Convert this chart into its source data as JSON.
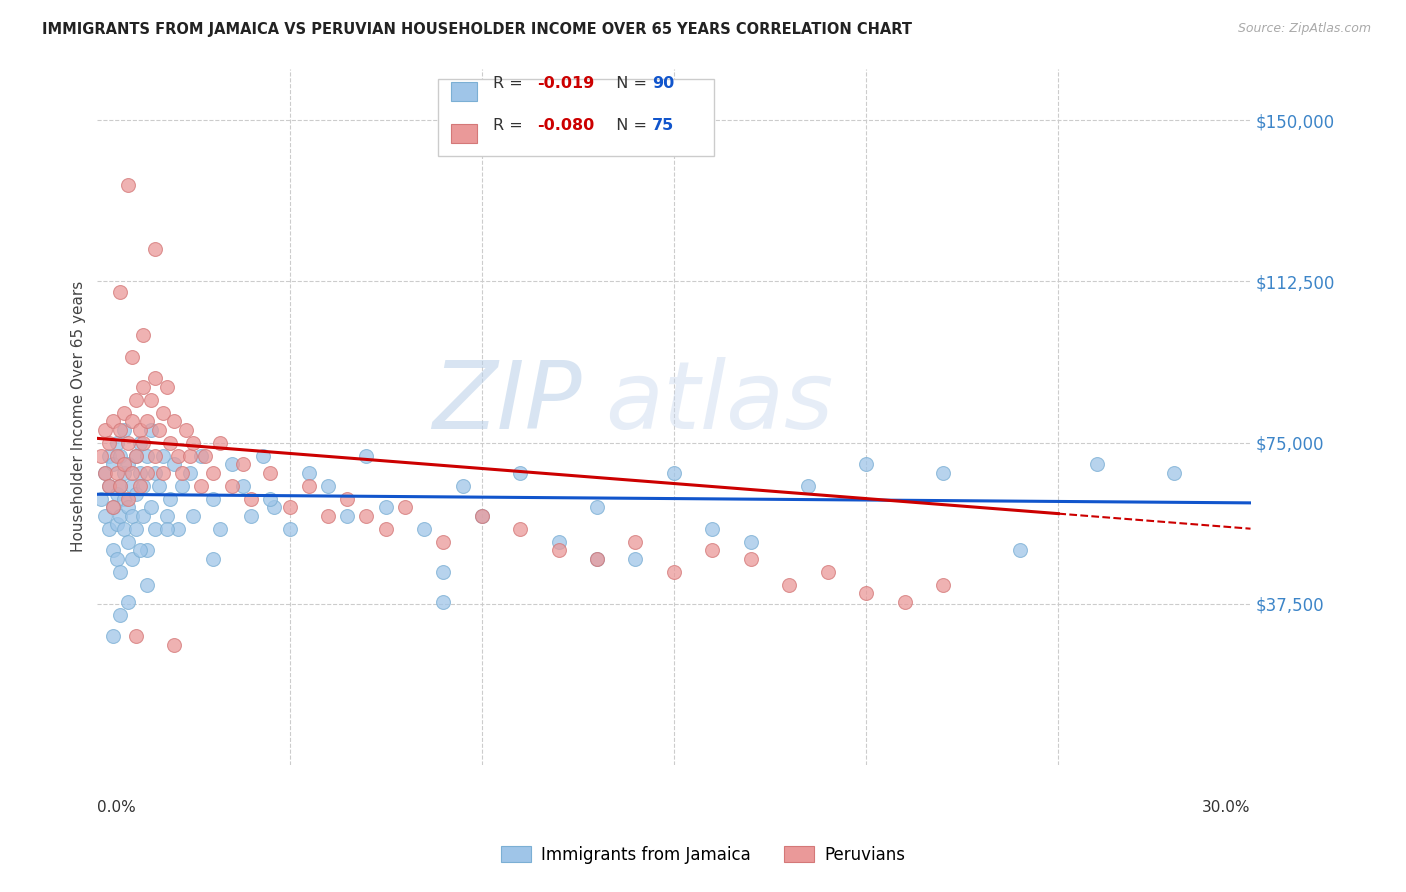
{
  "title": "IMMIGRANTS FROM JAMAICA VS PERUVIAN HOUSEHOLDER INCOME OVER 65 YEARS CORRELATION CHART",
  "source": "Source: ZipAtlas.com",
  "ylabel": "Householder Income Over 65 years",
  "yticks": [
    0,
    37500,
    75000,
    112500,
    150000
  ],
  "ytick_labels": [
    "",
    "$37,500",
    "$75,000",
    "$112,500",
    "$150,000"
  ],
  "xlim": [
    0.0,
    0.3
  ],
  "ylim": [
    0,
    162000
  ],
  "color_blue": "#9fc5e8",
  "color_pink": "#ea9999",
  "trendline_blue": "#1155cc",
  "trendline_pink": "#cc0000",
  "watermark_zip": "ZIP",
  "watermark_atlas": "atlas",
  "jamaica_x": [
    0.001,
    0.002,
    0.002,
    0.003,
    0.003,
    0.003,
    0.004,
    0.004,
    0.004,
    0.005,
    0.005,
    0.005,
    0.005,
    0.006,
    0.006,
    0.006,
    0.006,
    0.007,
    0.007,
    0.007,
    0.007,
    0.008,
    0.008,
    0.008,
    0.009,
    0.009,
    0.009,
    0.01,
    0.01,
    0.01,
    0.011,
    0.011,
    0.012,
    0.012,
    0.013,
    0.013,
    0.014,
    0.014,
    0.015,
    0.015,
    0.016,
    0.017,
    0.018,
    0.019,
    0.02,
    0.021,
    0.022,
    0.024,
    0.025,
    0.027,
    0.03,
    0.032,
    0.035,
    0.038,
    0.04,
    0.043,
    0.046,
    0.05,
    0.055,
    0.06,
    0.065,
    0.07,
    0.075,
    0.085,
    0.09,
    0.095,
    0.1,
    0.11,
    0.12,
    0.13,
    0.14,
    0.15,
    0.16,
    0.17,
    0.185,
    0.2,
    0.22,
    0.24,
    0.26,
    0.28,
    0.13,
    0.09,
    0.045,
    0.03,
    0.018,
    0.013,
    0.011,
    0.008,
    0.006,
    0.004
  ],
  "jamaica_y": [
    62000,
    58000,
    68000,
    65000,
    55000,
    72000,
    60000,
    50000,
    70000,
    63000,
    56000,
    75000,
    48000,
    65000,
    58000,
    72000,
    45000,
    68000,
    62000,
    55000,
    78000,
    60000,
    52000,
    70000,
    65000,
    58000,
    48000,
    72000,
    55000,
    63000,
    68000,
    75000,
    58000,
    65000,
    72000,
    50000,
    78000,
    60000,
    68000,
    55000,
    65000,
    72000,
    58000,
    62000,
    70000,
    55000,
    65000,
    68000,
    58000,
    72000,
    62000,
    55000,
    70000,
    65000,
    58000,
    72000,
    60000,
    55000,
    68000,
    65000,
    58000,
    72000,
    60000,
    55000,
    45000,
    65000,
    58000,
    68000,
    52000,
    60000,
    48000,
    68000,
    55000,
    52000,
    65000,
    70000,
    68000,
    50000,
    70000,
    68000,
    48000,
    38000,
    62000,
    48000,
    55000,
    42000,
    50000,
    38000,
    35000,
    30000
  ],
  "peru_x": [
    0.001,
    0.002,
    0.002,
    0.003,
    0.003,
    0.004,
    0.004,
    0.005,
    0.005,
    0.006,
    0.006,
    0.007,
    0.007,
    0.008,
    0.008,
    0.009,
    0.009,
    0.01,
    0.01,
    0.011,
    0.011,
    0.012,
    0.012,
    0.013,
    0.013,
    0.014,
    0.015,
    0.015,
    0.016,
    0.017,
    0.017,
    0.018,
    0.019,
    0.02,
    0.021,
    0.022,
    0.023,
    0.024,
    0.025,
    0.027,
    0.028,
    0.03,
    0.032,
    0.035,
    0.038,
    0.04,
    0.045,
    0.05,
    0.055,
    0.06,
    0.065,
    0.07,
    0.075,
    0.08,
    0.09,
    0.1,
    0.11,
    0.12,
    0.13,
    0.14,
    0.15,
    0.16,
    0.17,
    0.18,
    0.19,
    0.2,
    0.21,
    0.22,
    0.01,
    0.02,
    0.015,
    0.008,
    0.012,
    0.006,
    0.009
  ],
  "peru_y": [
    72000,
    68000,
    78000,
    75000,
    65000,
    80000,
    60000,
    72000,
    68000,
    78000,
    65000,
    82000,
    70000,
    75000,
    62000,
    80000,
    68000,
    85000,
    72000,
    78000,
    65000,
    88000,
    75000,
    80000,
    68000,
    85000,
    72000,
    90000,
    78000,
    82000,
    68000,
    88000,
    75000,
    80000,
    72000,
    68000,
    78000,
    72000,
    75000,
    65000,
    72000,
    68000,
    75000,
    65000,
    70000,
    62000,
    68000,
    60000,
    65000,
    58000,
    62000,
    58000,
    55000,
    60000,
    52000,
    58000,
    55000,
    50000,
    48000,
    52000,
    45000,
    50000,
    48000,
    42000,
    45000,
    40000,
    38000,
    42000,
    30000,
    28000,
    120000,
    135000,
    100000,
    110000,
    95000
  ]
}
